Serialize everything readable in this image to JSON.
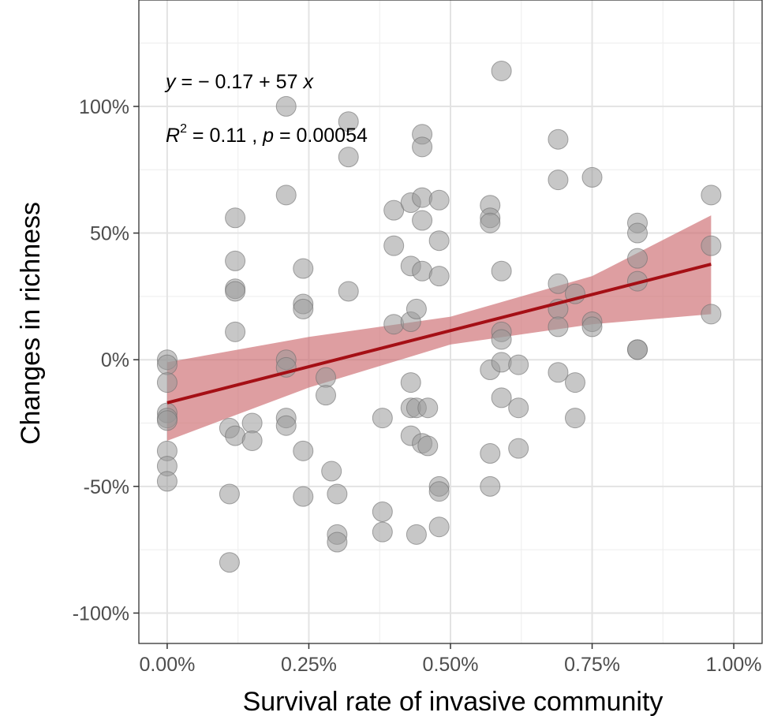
{
  "chart_data": {
    "type": "scatter",
    "xlabel": "Survival rate of invasive community",
    "ylabel": "Changes in richness",
    "xlim": [
      -0.0005,
      0.0105
    ],
    "ylim": [
      -1.12,
      1.42
    ],
    "x_ticks": [
      0,
      0.0025,
      0.005,
      0.0075,
      0.01
    ],
    "x_tick_labels": [
      "0.00%",
      "0.25%",
      "0.50%",
      "0.75%",
      "1.00%"
    ],
    "y_ticks": [
      -1,
      -0.5,
      0,
      0.5,
      1
    ],
    "y_tick_labels": [
      "-100%",
      "-50%",
      "0%",
      "50%",
      "100%"
    ],
    "grid": true,
    "annotation": {
      "eq_y": "y",
      "eq_text": " = − 0.17 + 57 ",
      "eq_x": "x",
      "r_label": "R",
      "r_sup": "2",
      "r_text": " = 0.11 , ",
      "p_label": "p",
      "p_text": " = 0.00054"
    },
    "fit": {
      "intercept": -0.17,
      "slope": 57,
      "x_range": [
        0,
        0.0096
      ],
      "ci_lower": [
        [
          0,
          -0.32
        ],
        [
          0.0025,
          -0.11
        ],
        [
          0.005,
          0.06
        ],
        [
          0.0075,
          0.14
        ],
        [
          0.0096,
          0.18
        ]
      ],
      "ci_upper": [
        [
          0,
          -0.01
        ],
        [
          0.0025,
          0.09
        ],
        [
          0.005,
          0.17
        ],
        [
          0.0075,
          0.33
        ],
        [
          0.0096,
          0.57
        ]
      ],
      "line_color": "#a50f15",
      "band_color": "#cd6a6f"
    },
    "point_color": "#999999",
    "points": [
      [
        0.0,
        0.0
      ],
      [
        0.0,
        -0.02
      ],
      [
        0.0,
        -0.09
      ],
      [
        0.0,
        -0.21
      ],
      [
        0.0,
        -0.23
      ],
      [
        0.0,
        -0.24
      ],
      [
        0.0,
        -0.36
      ],
      [
        0.0,
        -0.42
      ],
      [
        0.0,
        -0.48
      ],
      [
        0.0012,
        0.56
      ],
      [
        0.0012,
        0.39
      ],
      [
        0.0012,
        0.28
      ],
      [
        0.0012,
        0.27
      ],
      [
        0.0012,
        0.11
      ],
      [
        0.0011,
        -0.27
      ],
      [
        0.0012,
        -0.3
      ],
      [
        0.0015,
        -0.25
      ],
      [
        0.0015,
        -0.32
      ],
      [
        0.0011,
        -0.53
      ],
      [
        0.0011,
        -0.8
      ],
      [
        0.0021,
        1.0
      ],
      [
        0.0021,
        0.65
      ],
      [
        0.0021,
        0.0
      ],
      [
        0.0021,
        -0.03
      ],
      [
        0.0021,
        -0.23
      ],
      [
        0.0021,
        -0.26
      ],
      [
        0.0024,
        0.36
      ],
      [
        0.0024,
        0.22
      ],
      [
        0.0024,
        0.2
      ],
      [
        0.0024,
        -0.36
      ],
      [
        0.0024,
        -0.54
      ],
      [
        0.0028,
        -0.07
      ],
      [
        0.0028,
        -0.14
      ],
      [
        0.0029,
        -0.44
      ],
      [
        0.003,
        -0.53
      ],
      [
        0.003,
        -0.69
      ],
      [
        0.003,
        -0.72
      ],
      [
        0.0032,
        0.94
      ],
      [
        0.0032,
        0.8
      ],
      [
        0.0032,
        0.27
      ],
      [
        0.0038,
        -0.23
      ],
      [
        0.0038,
        -0.6
      ],
      [
        0.0038,
        -0.68
      ],
      [
        0.004,
        0.59
      ],
      [
        0.004,
        0.45
      ],
      [
        0.004,
        0.14
      ],
      [
        0.0043,
        0.62
      ],
      [
        0.0043,
        0.37
      ],
      [
        0.0043,
        0.15
      ],
      [
        0.0043,
        -0.09
      ],
      [
        0.0043,
        -0.19
      ],
      [
        0.0043,
        -0.3
      ],
      [
        0.0044,
        0.2
      ],
      [
        0.0044,
        -0.19
      ],
      [
        0.0044,
        -0.69
      ],
      [
        0.0045,
        0.89
      ],
      [
        0.0045,
        0.84
      ],
      [
        0.0045,
        0.64
      ],
      [
        0.0045,
        0.55
      ],
      [
        0.0045,
        0.35
      ],
      [
        0.0045,
        -0.33
      ],
      [
        0.0046,
        -0.19
      ],
      [
        0.0046,
        -0.34
      ],
      [
        0.0048,
        0.63
      ],
      [
        0.0048,
        0.47
      ],
      [
        0.0048,
        0.33
      ],
      [
        0.0048,
        -0.5
      ],
      [
        0.0048,
        -0.52
      ],
      [
        0.0048,
        -0.66
      ],
      [
        0.0059,
        1.14
      ],
      [
        0.0057,
        0.61
      ],
      [
        0.0057,
        0.56
      ],
      [
        0.0057,
        0.54
      ],
      [
        0.0057,
        -0.04
      ],
      [
        0.0057,
        -0.37
      ],
      [
        0.0057,
        -0.5
      ],
      [
        0.0059,
        0.35
      ],
      [
        0.0059,
        0.11
      ],
      [
        0.0059,
        0.08
      ],
      [
        0.0059,
        -0.01
      ],
      [
        0.0059,
        -0.15
      ],
      [
        0.0062,
        -0.02
      ],
      [
        0.0062,
        -0.19
      ],
      [
        0.0062,
        -0.35
      ],
      [
        0.0069,
        0.87
      ],
      [
        0.0069,
        0.71
      ],
      [
        0.0069,
        0.3
      ],
      [
        0.0069,
        0.2
      ],
      [
        0.0069,
        0.13
      ],
      [
        0.0069,
        -0.05
      ],
      [
        0.0072,
        0.26
      ],
      [
        0.0072,
        -0.09
      ],
      [
        0.0072,
        -0.23
      ],
      [
        0.0075,
        0.72
      ],
      [
        0.0075,
        0.15
      ],
      [
        0.0075,
        0.13
      ],
      [
        0.0083,
        0.54
      ],
      [
        0.0083,
        0.5
      ],
      [
        0.0083,
        0.4
      ],
      [
        0.0083,
        0.31
      ],
      [
        0.0083,
        0.04
      ],
      [
        0.0083,
        0.04
      ],
      [
        0.0096,
        0.65
      ],
      [
        0.0096,
        0.45
      ],
      [
        0.0096,
        0.18
      ]
    ]
  }
}
